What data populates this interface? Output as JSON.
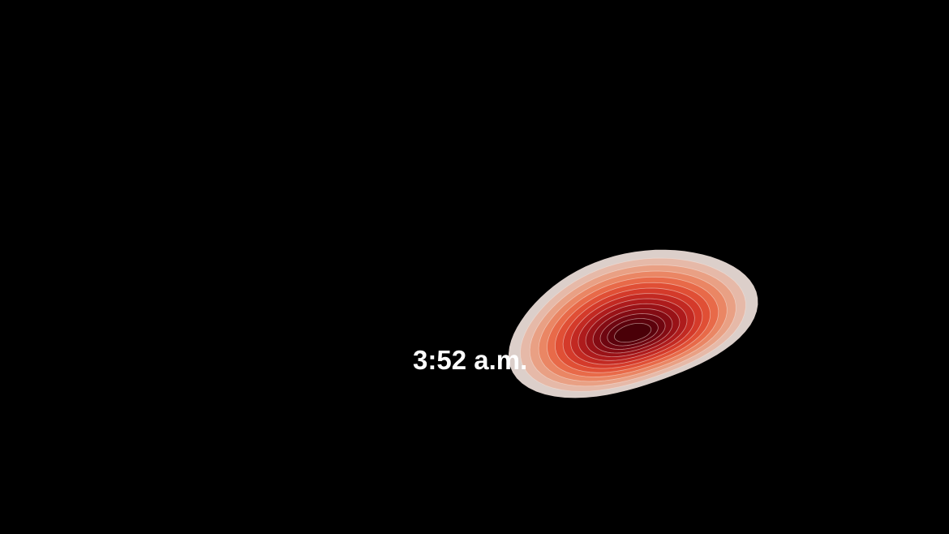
{
  "time_label": "3:52 a.m.",
  "background_color": "#000000",
  "label_color": "#ffffff",
  "density": {
    "level_count": 14,
    "outline_color": "#f6e3dc",
    "color_scale": [
      "#dccfca",
      "#e6b9a8",
      "#e9a084",
      "#ea8664",
      "#e86a49",
      "#e04f35",
      "#d43a2a",
      "#c22922",
      "#ae1b1c",
      "#991217",
      "#840b13",
      "#6f0610",
      "#5c020c",
      "#4a0008"
    ]
  }
}
